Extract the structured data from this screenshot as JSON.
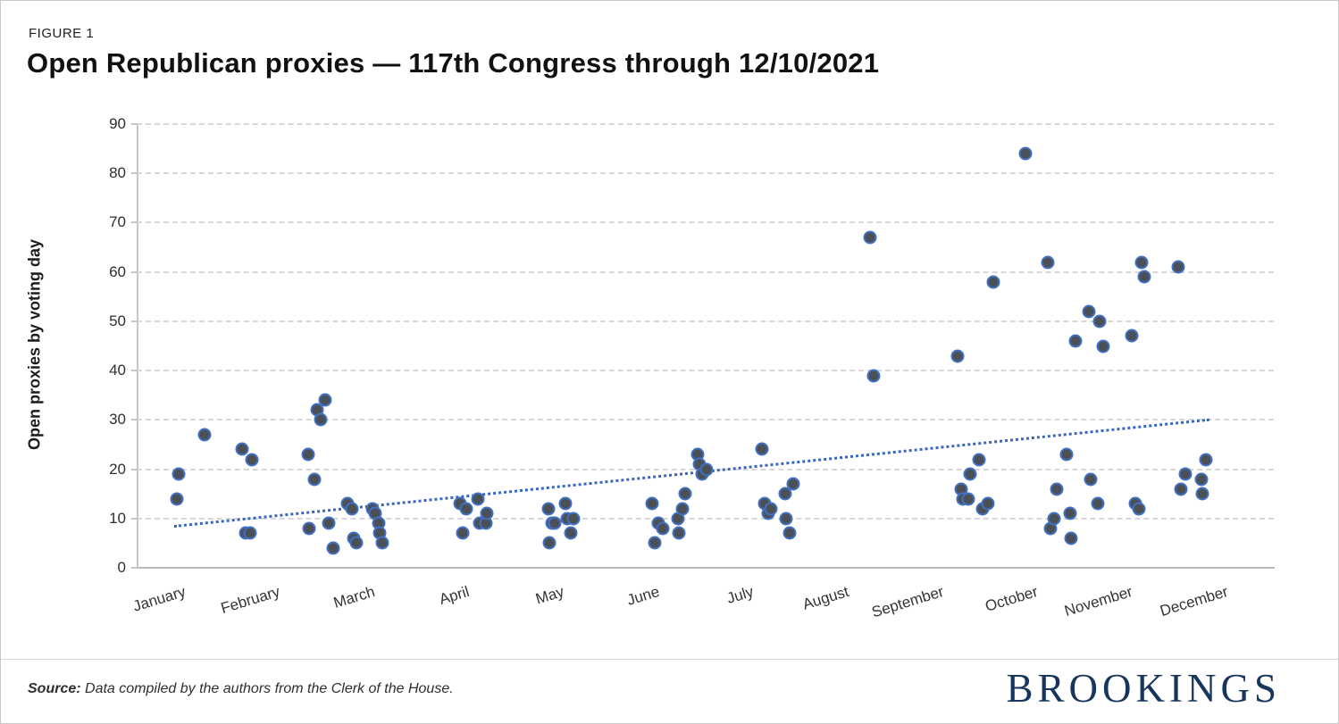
{
  "figure_label": "FIGURE 1",
  "title": "Open Republican proxies — 117th Congress through 12/10/2021",
  "footer": {
    "source_label": "Source:",
    "source_text": " Data compiled by the authors from the Clerk of the House.",
    "logo_text": "BROOKINGS"
  },
  "colors": {
    "dot_fill": "#4b5056",
    "dot_ring": "#4170c4",
    "trend_line": "#3a66c0",
    "gridline": "#d7d7d7",
    "axis": "#b8bcc0",
    "logo_navy": "#17365d"
  },
  "chart_data": {
    "type": "scatter",
    "title": "Open Republican proxies — 117th Congress through 12/10/2021",
    "xlabel": "",
    "ylabel": "Open proxies by voting day",
    "ylim": [
      0,
      90
    ],
    "y_ticks": [
      0,
      10,
      20,
      30,
      40,
      50,
      60,
      70,
      80,
      90
    ],
    "x_categories": [
      "January",
      "February",
      "March",
      "April",
      "May",
      "June",
      "July",
      "August",
      "September",
      "October",
      "November",
      "December"
    ],
    "grid": "horizontal-dashed",
    "legend": "none",
    "x_is_fraction_of_year_axis": true,
    "points": [
      [
        0.035,
        14
      ],
      [
        0.037,
        19
      ],
      [
        0.06,
        27
      ],
      [
        0.093,
        24
      ],
      [
        0.096,
        7
      ],
      [
        0.1,
        7
      ],
      [
        0.101,
        22
      ],
      [
        0.151,
        23
      ],
      [
        0.152,
        8
      ],
      [
        0.156,
        18
      ],
      [
        0.159,
        32
      ],
      [
        0.162,
        30
      ],
      [
        0.166,
        34
      ],
      [
        0.169,
        9
      ],
      [
        0.173,
        4
      ],
      [
        0.185,
        13
      ],
      [
        0.189,
        12
      ],
      [
        0.191,
        6
      ],
      [
        0.193,
        5
      ],
      [
        0.207,
        12
      ],
      [
        0.21,
        11
      ],
      [
        0.213,
        9
      ],
      [
        0.214,
        7
      ],
      [
        0.216,
        5
      ],
      [
        0.284,
        13
      ],
      [
        0.287,
        7
      ],
      [
        0.29,
        12
      ],
      [
        0.3,
        14
      ],
      [
        0.302,
        9
      ],
      [
        0.307,
        9
      ],
      [
        0.308,
        11
      ],
      [
        0.362,
        12
      ],
      [
        0.363,
        5
      ],
      [
        0.365,
        9
      ],
      [
        0.368,
        9
      ],
      [
        0.377,
        13
      ],
      [
        0.379,
        10
      ],
      [
        0.382,
        7
      ],
      [
        0.384,
        10
      ],
      [
        0.453,
        13
      ],
      [
        0.456,
        5
      ],
      [
        0.459,
        9
      ],
      [
        0.463,
        8
      ],
      [
        0.476,
        10
      ],
      [
        0.477,
        7
      ],
      [
        0.48,
        12
      ],
      [
        0.482,
        15
      ],
      [
        0.493,
        23
      ],
      [
        0.495,
        21
      ],
      [
        0.497,
        19
      ],
      [
        0.501,
        20
      ],
      [
        0.55,
        24
      ],
      [
        0.552,
        13
      ],
      [
        0.555,
        11
      ],
      [
        0.558,
        12
      ],
      [
        0.57,
        15
      ],
      [
        0.571,
        10
      ],
      [
        0.574,
        7
      ],
      [
        0.577,
        17
      ],
      [
        0.645,
        67
      ],
      [
        0.648,
        39
      ],
      [
        0.722,
        43
      ],
      [
        0.725,
        16
      ],
      [
        0.727,
        14
      ],
      [
        0.731,
        14
      ],
      [
        0.733,
        19
      ],
      [
        0.741,
        22
      ],
      [
        0.744,
        12
      ],
      [
        0.749,
        13
      ],
      [
        0.753,
        58
      ],
      [
        0.782,
        84
      ],
      [
        0.801,
        62
      ],
      [
        0.804,
        8
      ],
      [
        0.807,
        10
      ],
      [
        0.809,
        16
      ],
      [
        0.818,
        23
      ],
      [
        0.821,
        11
      ],
      [
        0.822,
        6
      ],
      [
        0.826,
        46
      ],
      [
        0.837,
        52
      ],
      [
        0.839,
        18
      ],
      [
        0.845,
        13
      ],
      [
        0.847,
        50
      ],
      [
        0.85,
        45
      ],
      [
        0.875,
        47
      ],
      [
        0.878,
        13
      ],
      [
        0.881,
        12
      ],
      [
        0.884,
        62
      ],
      [
        0.886,
        59
      ],
      [
        0.916,
        61
      ],
      [
        0.918,
        16
      ],
      [
        0.922,
        19
      ],
      [
        0.936,
        18
      ],
      [
        0.937,
        15
      ],
      [
        0.94,
        22
      ]
    ],
    "trend_line": {
      "x1": 0.033,
      "y1": 8.7,
      "x2": 0.943,
      "y2": 30.3,
      "style": "dotted"
    }
  }
}
